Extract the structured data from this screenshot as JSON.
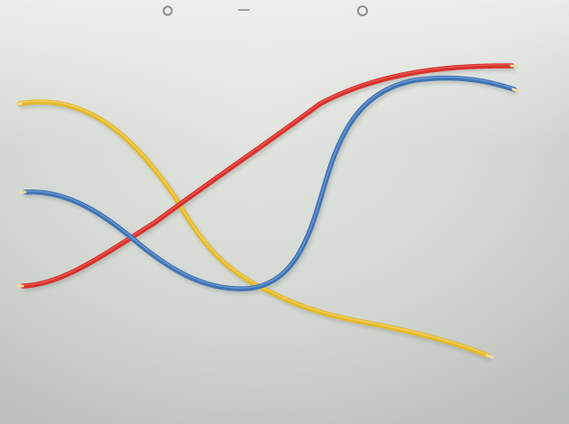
{
  "scene": {
    "subject": "wires",
    "board_color": "#d3d7d2",
    "board_shadow_color": "#aeb3ad",
    "wires": [
      {
        "name": "yellow-wire",
        "color": "#e5ba2a"
      },
      {
        "name": "red-wire",
        "color": "#d9322b"
      },
      {
        "name": "blue-wire",
        "color": "#3f74b6"
      }
    ]
  }
}
